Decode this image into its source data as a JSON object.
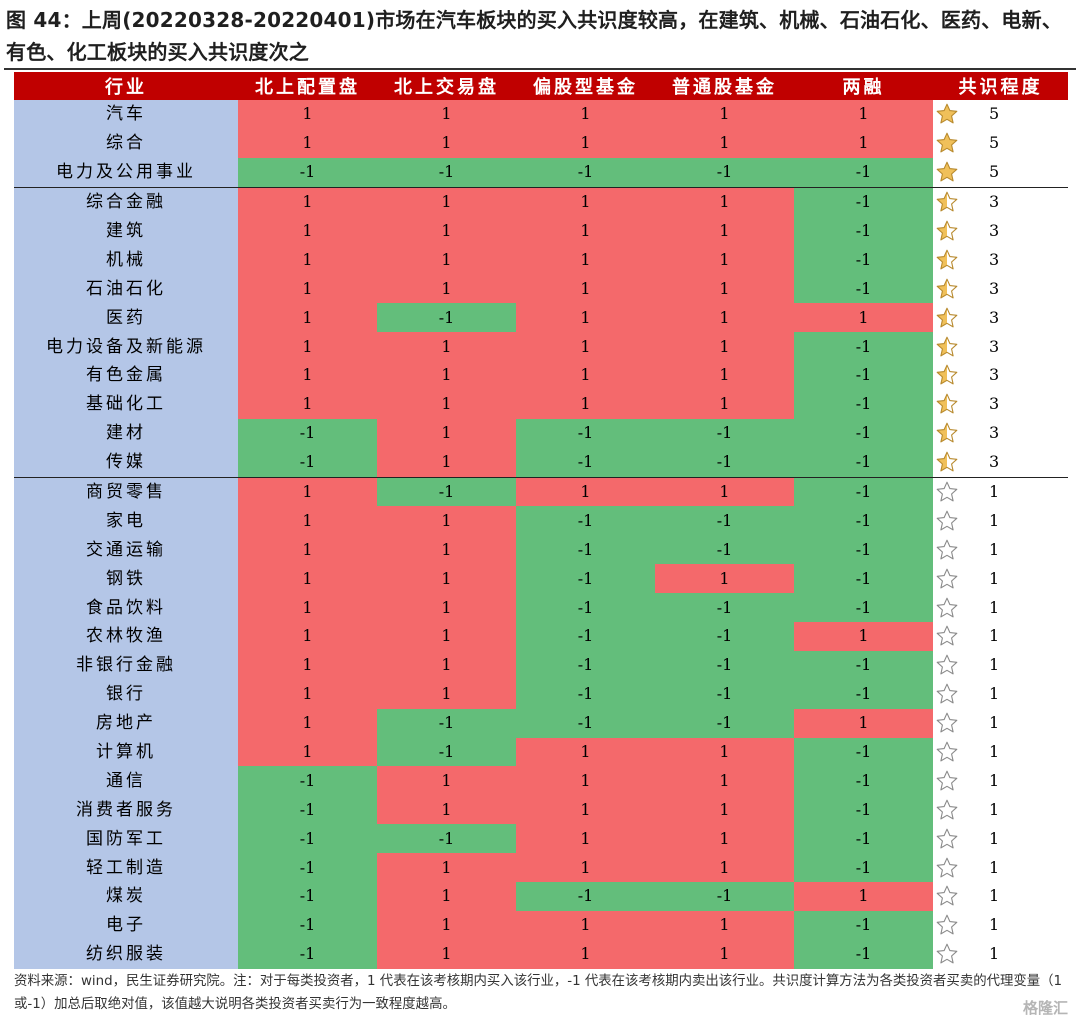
{
  "title": "图 44：上周(20220328-20220401)市场在汽车板块的买入共识度较高，在建筑、机械、石油石化、医药、电新、有色、化工板块的买入共识度次之",
  "headers": [
    "行业",
    "北上配置盘",
    "北上交易盘",
    "偏股型基金",
    "普通股基金",
    "两融",
    "共识程度"
  ],
  "colors": {
    "header_bg": "#c00000",
    "industry_bg": "#b4c6e7",
    "buy": "#f4696b",
    "sell": "#63be7b",
    "star_filled": "#f0c05a"
  },
  "rows": [
    {
      "industry": "汽车",
      "values": [
        "1",
        "1",
        "1",
        "1",
        "1"
      ],
      "score": "5",
      "star": "filled"
    },
    {
      "industry": "综合",
      "values": [
        "1",
        "1",
        "1",
        "1",
        "1"
      ],
      "score": "5",
      "star": "filled"
    },
    {
      "industry": "电力及公用事业",
      "values": [
        "-1",
        "-1",
        "-1",
        "-1",
        "-1"
      ],
      "score": "5",
      "star": "filled"
    },
    {
      "industry": "综合金融",
      "values": [
        "1",
        "1",
        "1",
        "1",
        "-1"
      ],
      "score": "3",
      "star": "half"
    },
    {
      "industry": "建筑",
      "values": [
        "1",
        "1",
        "1",
        "1",
        "-1"
      ],
      "score": "3",
      "star": "half"
    },
    {
      "industry": "机械",
      "values": [
        "1",
        "1",
        "1",
        "1",
        "-1"
      ],
      "score": "3",
      "star": "half"
    },
    {
      "industry": "石油石化",
      "values": [
        "1",
        "1",
        "1",
        "1",
        "-1"
      ],
      "score": "3",
      "star": "half"
    },
    {
      "industry": "医药",
      "values": [
        "1",
        "-1",
        "1",
        "1",
        "1"
      ],
      "score": "3",
      "star": "half"
    },
    {
      "industry": "电力设备及新能源",
      "values": [
        "1",
        "1",
        "1",
        "1",
        "-1"
      ],
      "score": "3",
      "star": "half"
    },
    {
      "industry": "有色金属",
      "values": [
        "1",
        "1",
        "1",
        "1",
        "-1"
      ],
      "score": "3",
      "star": "half"
    },
    {
      "industry": "基础化工",
      "values": [
        "1",
        "1",
        "1",
        "1",
        "-1"
      ],
      "score": "3",
      "star": "half"
    },
    {
      "industry": "建材",
      "values": [
        "-1",
        "1",
        "-1",
        "-1",
        "-1"
      ],
      "score": "3",
      "star": "half"
    },
    {
      "industry": "传媒",
      "values": [
        "-1",
        "1",
        "-1",
        "-1",
        "-1"
      ],
      "score": "3",
      "star": "half"
    },
    {
      "industry": "商贸零售",
      "values": [
        "1",
        "-1",
        "1",
        "1",
        "-1"
      ],
      "score": "1",
      "star": "empty"
    },
    {
      "industry": "家电",
      "values": [
        "1",
        "1",
        "-1",
        "-1",
        "-1"
      ],
      "score": "1",
      "star": "empty"
    },
    {
      "industry": "交通运输",
      "values": [
        "1",
        "1",
        "-1",
        "-1",
        "-1"
      ],
      "score": "1",
      "star": "empty"
    },
    {
      "industry": "钢铁",
      "values": [
        "1",
        "1",
        "-1",
        "1",
        "-1"
      ],
      "score": "1",
      "star": "empty"
    },
    {
      "industry": "食品饮料",
      "values": [
        "1",
        "1",
        "-1",
        "-1",
        "-1"
      ],
      "score": "1",
      "star": "empty"
    },
    {
      "industry": "农林牧渔",
      "values": [
        "1",
        "1",
        "-1",
        "-1",
        "1"
      ],
      "score": "1",
      "star": "empty"
    },
    {
      "industry": "非银行金融",
      "values": [
        "1",
        "1",
        "-1",
        "-1",
        "-1"
      ],
      "score": "1",
      "star": "empty"
    },
    {
      "industry": "银行",
      "values": [
        "1",
        "1",
        "-1",
        "-1",
        "-1"
      ],
      "score": "1",
      "star": "empty"
    },
    {
      "industry": "房地产",
      "values": [
        "1",
        "-1",
        "-1",
        "-1",
        "1"
      ],
      "score": "1",
      "star": "empty"
    },
    {
      "industry": "计算机",
      "values": [
        "1",
        "-1",
        "1",
        "1",
        "-1"
      ],
      "score": "1",
      "star": "empty"
    },
    {
      "industry": "通信",
      "values": [
        "-1",
        "1",
        "1",
        "1",
        "-1"
      ],
      "score": "1",
      "star": "empty"
    },
    {
      "industry": "消费者服务",
      "values": [
        "-1",
        "1",
        "1",
        "1",
        "-1"
      ],
      "score": "1",
      "star": "empty"
    },
    {
      "industry": "国防军工",
      "values": [
        "-1",
        "-1",
        "1",
        "1",
        "-1"
      ],
      "score": "1",
      "star": "empty"
    },
    {
      "industry": "轻工制造",
      "values": [
        "-1",
        "1",
        "1",
        "1",
        "-1"
      ],
      "score": "1",
      "star": "empty"
    },
    {
      "industry": "煤炭",
      "values": [
        "-1",
        "1",
        "-1",
        "-1",
        "1"
      ],
      "score": "1",
      "star": "empty"
    },
    {
      "industry": "电子",
      "values": [
        "-1",
        "1",
        "1",
        "1",
        "-1"
      ],
      "score": "1",
      "star": "empty"
    },
    {
      "industry": "纺织服装",
      "values": [
        "-1",
        "1",
        "1",
        "1",
        "-1"
      ],
      "score": "1",
      "star": "empty"
    }
  ],
  "group_breaks_after": [
    "电力及公用事业",
    "传媒"
  ],
  "note": "资料来源：wind，民生证券研究院。注：对于每类投资者，1 代表在该考核期内买入该行业，-1 代表在该考核期内卖出该行业。共识度计算方法为各类投资者买卖的代理变量（1 或-1）加总后取绝对值，该值越大说明各类投资者买卖行为一致程度越高。",
  "watermark": "格隆汇"
}
